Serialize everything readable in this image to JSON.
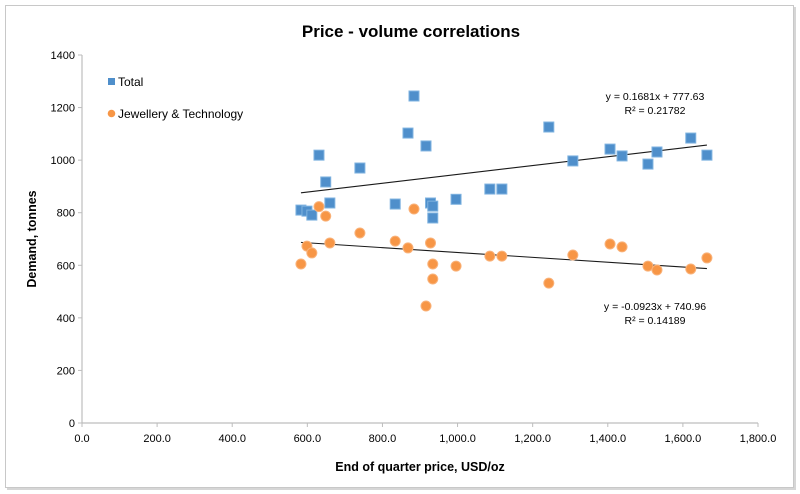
{
  "chart_data": {
    "type": "scatter",
    "title": "Price - volume correlations",
    "xlabel": "End of quarter price, USD/oz",
    "ylabel": "Demand, tonnes",
    "xlim": [
      0,
      1800
    ],
    "ylim": [
      0,
      1400
    ],
    "xticks": [
      0,
      200,
      400,
      600,
      800,
      1000,
      1200,
      1400,
      1600,
      1800
    ],
    "xtick_labels": [
      "0.0",
      "200.0",
      "400.0",
      "600.0",
      "800.0",
      "1,000.0",
      "1,200.0",
      "1,400.0",
      "1,600.0",
      "1,800.0"
    ],
    "yticks": [
      0,
      200,
      400,
      600,
      800,
      1000,
      1200,
      1400
    ],
    "ytick_labels": [
      "0",
      "200",
      "400",
      "600",
      "800",
      "1000",
      "1200",
      "1400"
    ],
    "grid": false,
    "legend_position": "top-left",
    "series": [
      {
        "name": "Total",
        "marker": "square",
        "color": "#4F8FCB",
        "points": [
          [
            583,
            810
          ],
          [
            599,
            806
          ],
          [
            612,
            791
          ],
          [
            631,
            1019
          ],
          [
            649,
            917
          ],
          [
            660,
            837
          ],
          [
            740,
            970
          ],
          [
            834,
            833
          ],
          [
            868,
            1103
          ],
          [
            884,
            1244
          ],
          [
            916,
            1054
          ],
          [
            928,
            837
          ],
          [
            934,
            825
          ],
          [
            934,
            780
          ],
          [
            996,
            851
          ],
          [
            1086,
            890
          ],
          [
            1118,
            890
          ],
          [
            1243,
            1126
          ],
          [
            1307,
            997
          ],
          [
            1406,
            1042
          ],
          [
            1438,
            1016
          ],
          [
            1507,
            985
          ],
          [
            1531,
            1031
          ],
          [
            1621,
            1084
          ],
          [
            1664,
            1019
          ]
        ],
        "trendline": {
          "slope": 0.1681,
          "intercept": 777.63,
          "equation": "y = 0.1681x + 777.63",
          "r_squared_label": "R² = 0.21782",
          "x_range": [
            583,
            1664
          ]
        }
      },
      {
        "name": "Jewellery & Technology",
        "marker": "circle",
        "color": "#F79646",
        "points": [
          [
            583,
            605
          ],
          [
            599,
            673
          ],
          [
            612,
            647
          ],
          [
            631,
            823
          ],
          [
            649,
            787
          ],
          [
            660,
            685
          ],
          [
            740,
            723
          ],
          [
            834,
            692
          ],
          [
            868,
            666
          ],
          [
            884,
            814
          ],
          [
            916,
            445
          ],
          [
            928,
            685
          ],
          [
            934,
            605
          ],
          [
            934,
            548
          ],
          [
            996,
            597
          ],
          [
            1086,
            635
          ],
          [
            1118,
            635
          ],
          [
            1243,
            532
          ],
          [
            1307,
            639
          ],
          [
            1406,
            681
          ],
          [
            1438,
            670
          ],
          [
            1507,
            597
          ],
          [
            1531,
            582
          ],
          [
            1621,
            586
          ],
          [
            1664,
            628
          ]
        ],
        "trendline": {
          "slope": -0.0923,
          "intercept": 740.96,
          "equation": "y = -0.0923x + 740.96",
          "r_squared_label": "R² = 0.14189",
          "x_range": [
            583,
            1664
          ]
        }
      }
    ]
  }
}
